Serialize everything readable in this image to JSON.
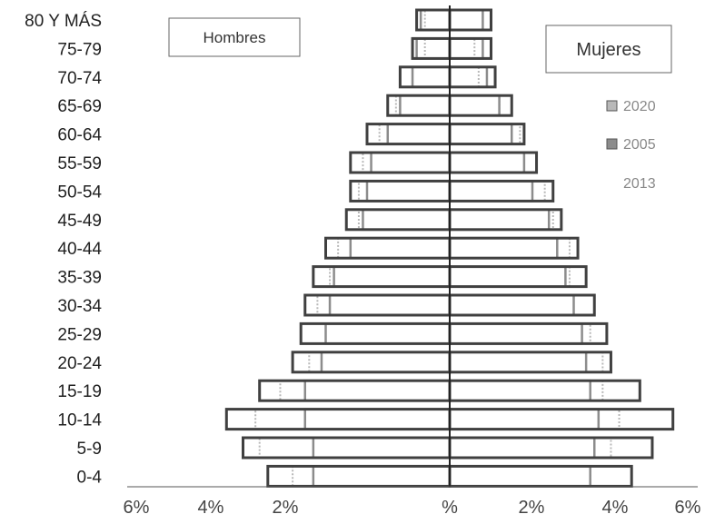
{
  "chart_data": {
    "type": "bar",
    "subtype": "population-pyramid",
    "categories": [
      "80 Y MÁS",
      "75-79",
      "70-74",
      "65-69",
      "60-64",
      "55-59",
      "50-54",
      "45-49",
      "40-44",
      "35-39",
      "30-34",
      "25-29",
      "20-24",
      "15-19",
      "10-14",
      "5-9",
      "0-4"
    ],
    "x_ticks": [
      "6%",
      "4%",
      "2%",
      "%",
      "2%",
      "4%",
      "6%"
    ],
    "group_labels": {
      "left": "Hombres",
      "right": "Mujeres"
    },
    "legend": [
      "2020",
      "2005",
      "2013"
    ],
    "series": [
      {
        "name": "2020",
        "hombres": [
          0.6,
          0.6,
          0.9,
          1.3,
          1.7,
          2.1,
          2.2,
          2.2,
          2.7,
          2.9,
          3.2,
          3.6,
          3.4,
          4.1,
          4.7,
          4.6,
          3.8
        ],
        "mujeres": [
          0.8,
          0.6,
          0.7,
          1.2,
          1.7,
          2.1,
          2.3,
          2.5,
          2.9,
          2.9,
          3.0,
          3.4,
          3.7,
          3.7,
          4.1,
          3.9,
          3.4
        ]
      },
      {
        "name": "2005",
        "hombres": [
          0.7,
          0.8,
          0.9,
          1.2,
          1.5,
          1.9,
          2.0,
          2.1,
          2.4,
          2.8,
          2.9,
          3.0,
          3.1,
          3.5,
          3.5,
          3.3,
          3.3
        ],
        "mujeres": [
          0.8,
          0.8,
          0.9,
          1.2,
          1.5,
          1.8,
          2.0,
          2.4,
          2.6,
          2.8,
          3.0,
          3.2,
          3.3,
          3.4,
          3.6,
          3.5,
          3.4
        ]
      },
      {
        "name": "2013",
        "hombres": [
          0.8,
          0.9,
          1.2,
          1.5,
          2.0,
          2.4,
          2.4,
          2.5,
          3.0,
          3.3,
          3.5,
          3.6,
          3.8,
          4.6,
          5.4,
          5.0,
          4.4
        ],
        "mujeres": [
          1.0,
          1.0,
          1.1,
          1.5,
          1.8,
          2.1,
          2.5,
          2.7,
          3.1,
          3.3,
          3.5,
          3.8,
          3.9,
          4.6,
          5.4,
          4.9,
          4.4
        ]
      }
    ],
    "xlim": [
      -6,
      6
    ],
    "colors": {
      "2020": "#b8b8b8",
      "2005": "#8c8c8c",
      "2013": "#404040"
    }
  }
}
